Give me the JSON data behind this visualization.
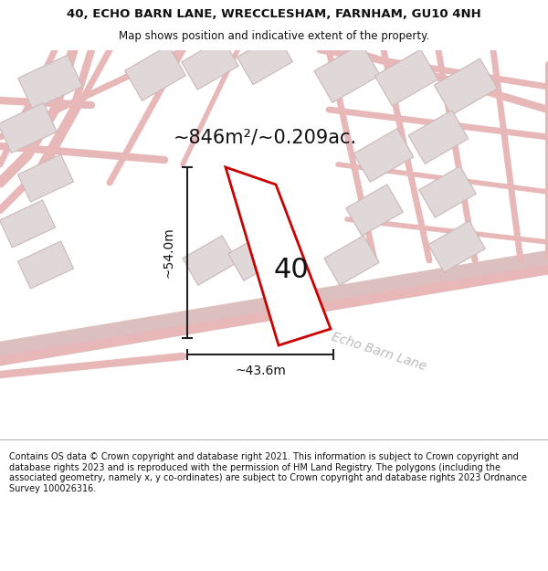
{
  "title": "40, ECHO BARN LANE, WRECCLESHAM, FARNHAM, GU10 4NH",
  "subtitle": "Map shows position and indicative extent of the property.",
  "area_text": "~846m²/~0.209ac.",
  "dim_vertical": "~54.0m",
  "dim_horizontal": "~43.6m",
  "number_label": "40",
  "road_label": "Echo Barn Lane",
  "footer": "Contains OS data © Crown copyright and database right 2021. This information is subject to Crown copyright and database rights 2023 and is reproduced with the permission of HM Land Registry. The polygons (including the associated geometry, namely x, y co-ordinates) are subject to Crown copyright and database rights 2023 Ordnance Survey 100026316.",
  "bg_color": "#ffffff",
  "map_bg": "#f7f4f4",
  "road_color": "#e8b8b8",
  "road_thick_color": "#dcc0c0",
  "building_fill": "#e0d8d8",
  "building_edge": "#ccb8b8",
  "plot_outline_color": "#cc0000",
  "plot_fill": "#ffffff",
  "dim_line_color": "#222222",
  "text_color": "#111111",
  "road_text_color": "#bbbbbb"
}
